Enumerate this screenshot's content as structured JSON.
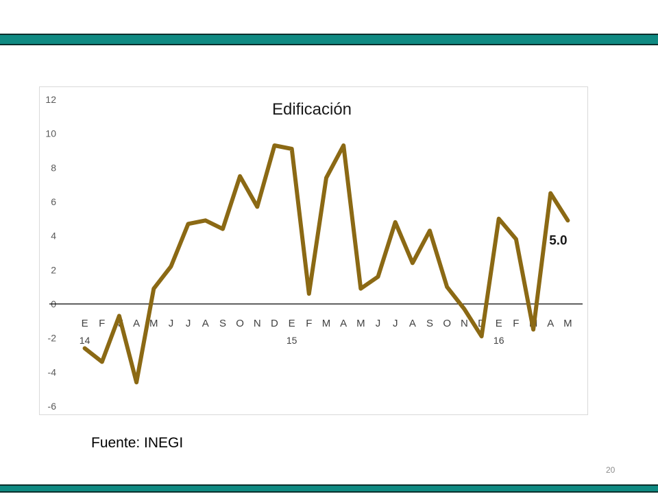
{
  "slide": {
    "source": "Fuente: INEGI",
    "page_number": "20",
    "accent_color": "#0f8a82"
  },
  "chart_data": {
    "type": "line",
    "title": "Edificación",
    "xlabel": "",
    "ylabel": "",
    "ylim": [
      -6,
      12
    ],
    "yticks": [
      -6,
      -4,
      -2,
      0,
      2,
      4,
      6,
      8,
      10,
      12
    ],
    "grid": false,
    "categories": [
      "E",
      "F",
      "M",
      "A",
      "M",
      "J",
      "J",
      "A",
      "S",
      "O",
      "N",
      "D",
      "E",
      "F",
      "M",
      "A",
      "M",
      "J",
      "J",
      "A",
      "S",
      "O",
      "N",
      "D",
      "E",
      "F",
      "M",
      "A",
      "M"
    ],
    "year_labels": [
      {
        "index": 0,
        "label": "14"
      },
      {
        "index": 12,
        "label": "15"
      },
      {
        "index": 24,
        "label": "16"
      }
    ],
    "series": [
      {
        "color": "#8B6914",
        "values": [
          -2.6,
          -3.4,
          -0.7,
          -4.6,
          0.9,
          2.2,
          4.7,
          4.9,
          4.4,
          7.5,
          5.7,
          9.3,
          9.1,
          0.6,
          7.4,
          9.3,
          0.9,
          1.6,
          4.8,
          2.4,
          4.3,
          1.0,
          -0.3,
          -1.9,
          5.0,
          3.8,
          -1.5,
          6.5,
          4.9
        ]
      }
    ],
    "annotation": "5.0"
  }
}
